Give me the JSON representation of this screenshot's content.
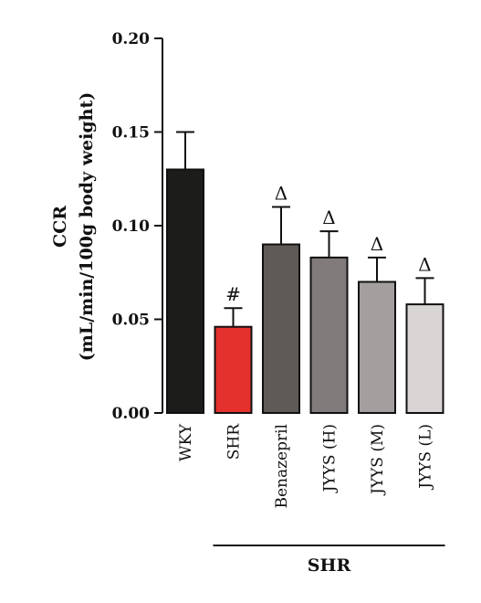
{
  "chart_data": {
    "type": "bar",
    "categories": [
      "WKY",
      "SHR",
      "Benazepril",
      "JYYS (H)",
      "JYYS (M)",
      "JYYS (L)"
    ],
    "values": [
      0.13,
      0.046,
      0.09,
      0.083,
      0.07,
      0.058
    ],
    "errors": [
      0.02,
      0.01,
      0.02,
      0.014,
      0.013,
      0.014
    ],
    "annotations": [
      "",
      "#",
      "Δ",
      "Δ",
      "Δ",
      "Δ"
    ],
    "colors": [
      "#1c1c1a",
      "#e5312d",
      "#5f5958",
      "#817c7b",
      "#a49f9e",
      "#d9d5d4"
    ],
    "ylabel_line1": "CCR",
    "ylabel_line2": "(mL/min/100g body weight)",
    "ylim": [
      0,
      0.2
    ],
    "yticks": [
      "0.00",
      "0.05",
      "0.10",
      "0.15",
      "0.20"
    ],
    "group_label": "SHR",
    "grid": false,
    "legend": "none"
  }
}
